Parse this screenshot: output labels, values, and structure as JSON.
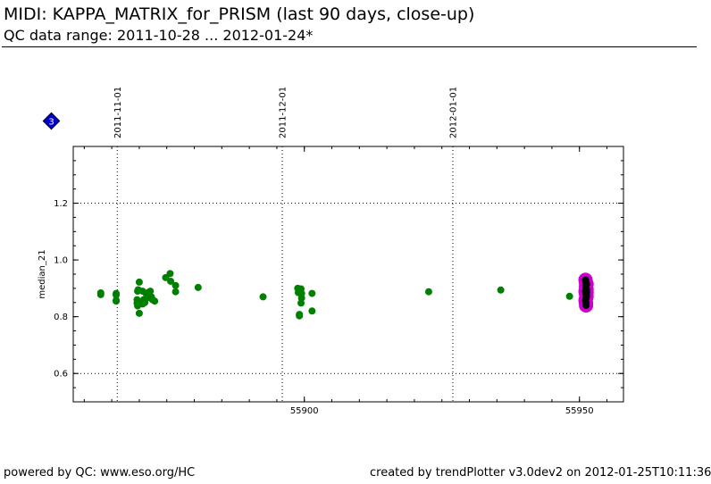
{
  "header": {
    "title": "MIDI: KAPPA_MATRIX_for_PRISM (last 90 days, close-up)",
    "subtitle": "QC data range: 2011-10-28 ... 2012-01-24*"
  },
  "badge": {
    "label": "3",
    "color": "#0000cc"
  },
  "footer": {
    "left": "powered by QC: www.eso.org/HC",
    "right": "created by trendPlotter v3.0dev2 on 2012-01-25T10:11:36"
  },
  "chart_data": {
    "type": "scatter",
    "ylabel": "median_21",
    "xlim": [
      55858,
      55958
    ],
    "ylim": [
      0.5,
      1.4
    ],
    "x_ticks": [
      55900,
      55950
    ],
    "y_ticks": [
      0.6,
      0.8,
      1.0,
      1.2
    ],
    "y_tick_labels": [
      "0.6",
      "0.8",
      "1.0",
      "1.2"
    ],
    "grid": {
      "y_dotted": [
        0.6,
        1.2
      ]
    },
    "date_markers": [
      {
        "x": 55866,
        "label": "2011-11-01"
      },
      {
        "x": 55896,
        "label": "2011-12-01"
      },
      {
        "x": 55927,
        "label": "2012-01-01"
      }
    ],
    "colors": {
      "main": "#008000",
      "recent_ring": "#cc00cc",
      "recent_core": "#000000"
    },
    "series": [
      {
        "points": [
          [
            55863.0,
            0.884
          ],
          [
            55863.0,
            0.878
          ],
          [
            55865.8,
            0.882
          ],
          [
            55865.8,
            0.876
          ],
          [
            55865.8,
            0.858
          ],
          [
            55865.8,
            0.855
          ],
          [
            55870.0,
            0.922
          ],
          [
            55869.8,
            0.895
          ],
          [
            55869.7,
            0.89
          ],
          [
            55869.6,
            0.86
          ],
          [
            55869.6,
            0.848
          ],
          [
            55869.7,
            0.838
          ],
          [
            55870.0,
            0.812
          ],
          [
            55870.6,
            0.89
          ],
          [
            55870.8,
            0.86
          ],
          [
            55871.0,
            0.85
          ],
          [
            55870.6,
            0.845
          ],
          [
            55871.3,
            0.88
          ],
          [
            55871.6,
            0.885
          ],
          [
            55871.4,
            0.866
          ],
          [
            55872.0,
            0.89
          ],
          [
            55872.2,
            0.87
          ],
          [
            55872.4,
            0.86
          ],
          [
            55872.8,
            0.855
          ],
          [
            55874.8,
            0.938
          ],
          [
            55875.6,
            0.952
          ],
          [
            55875.7,
            0.925
          ],
          [
            55876.6,
            0.91
          ],
          [
            55876.6,
            0.888
          ],
          [
            55880.7,
            0.903
          ],
          [
            55892.5,
            0.87
          ],
          [
            55898.8,
            0.9
          ],
          [
            55898.9,
            0.885
          ],
          [
            55899.4,
            0.898
          ],
          [
            55899.5,
            0.882
          ],
          [
            55899.5,
            0.866
          ],
          [
            55899.4,
            0.848
          ],
          [
            55899.1,
            0.808
          ],
          [
            55899.1,
            0.803
          ],
          [
            55901.4,
            0.882
          ],
          [
            55901.4,
            0.82
          ],
          [
            55922.6,
            0.888
          ],
          [
            55935.7,
            0.894
          ],
          [
            55948.2,
            0.872
          ]
        ]
      },
      {
        "points": [
          [
            55951.1,
            0.93
          ],
          [
            55951.2,
            0.92
          ],
          [
            55951.2,
            0.91
          ],
          [
            55951.2,
            0.903
          ],
          [
            55951.3,
            0.896
          ],
          [
            55951.1,
            0.889
          ],
          [
            55951.2,
            0.88
          ],
          [
            55951.3,
            0.872
          ],
          [
            55951.2,
            0.865
          ],
          [
            55951.1,
            0.857
          ],
          [
            55951.2,
            0.848
          ],
          [
            55951.2,
            0.84
          ],
          [
            55951.3,
            0.915
          ],
          [
            55951.3,
            0.885
          ]
        ]
      }
    ]
  }
}
